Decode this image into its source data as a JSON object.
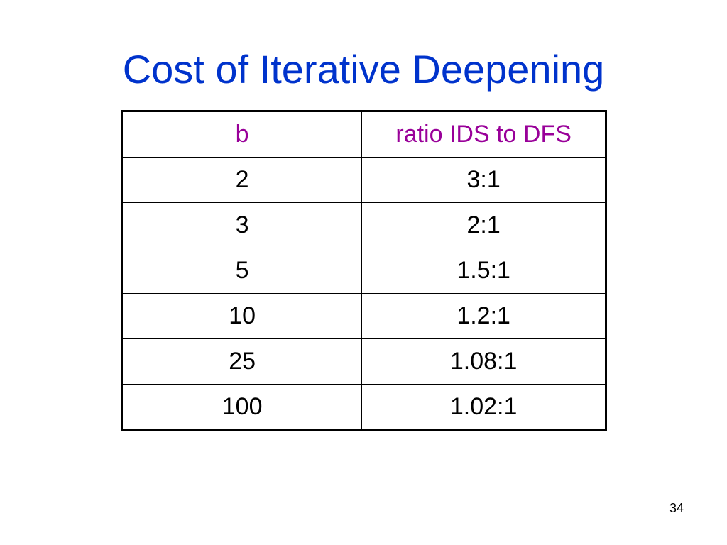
{
  "slide": {
    "title": "Cost of Iterative Deepening",
    "page_number": "34"
  },
  "table": {
    "headers": [
      "b",
      "ratio IDS to DFS"
    ],
    "rows": [
      [
        "2",
        "3:1"
      ],
      [
        "3",
        "2:1"
      ],
      [
        "5",
        "1.5:1"
      ],
      [
        "10",
        "1.2:1"
      ],
      [
        "25",
        "1.08:1"
      ],
      [
        "100",
        "1.02:1"
      ]
    ]
  },
  "colors": {
    "title": "#0033cc",
    "header_text": "#990099",
    "body_text": "#000000",
    "border": "#000000",
    "background": "#ffffff"
  }
}
